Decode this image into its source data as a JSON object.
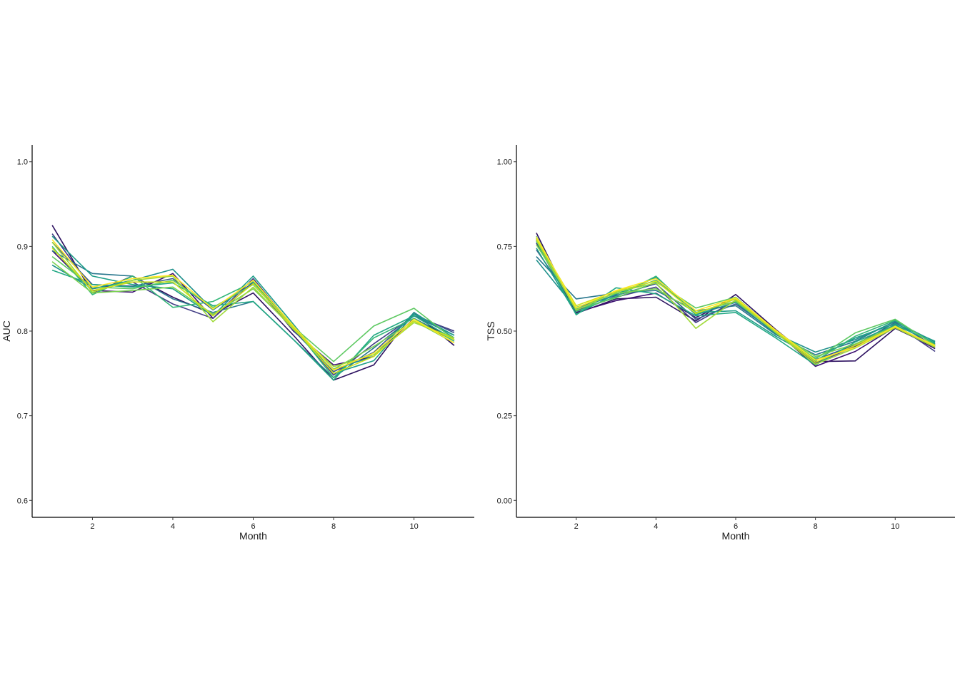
{
  "chart_data": [
    {
      "type": "line",
      "xlabel": "Month",
      "ylabel": "AUC",
      "xlim": [
        0.5,
        11.5
      ],
      "ylim": [
        0.58,
        1.02
      ],
      "xticks": [
        2,
        4,
        6,
        8,
        10
      ],
      "xtick_labels": [
        "2",
        "4",
        "6",
        "8",
        "10"
      ],
      "yticks": [
        0.6,
        0.7,
        0.8,
        0.9,
        1.0
      ],
      "ytick_labels": [
        "0.6",
        "0.7",
        "0.8",
        "0.9",
        "1.0"
      ],
      "grid": false,
      "legend": "none",
      "x": [
        1,
        2,
        3,
        4,
        5,
        6,
        7,
        8,
        9,
        10,
        11
      ],
      "series": [
        {
          "color": "#2d1160",
          "values": [
            0.925,
            0.845,
            0.865,
            0.84,
            0.82,
            0.845,
            0.795,
            0.742,
            0.76,
            0.822,
            0.783
          ]
        },
        {
          "color": "#3b0f70",
          "values": [
            0.895,
            0.848,
            0.846,
            0.868,
            0.815,
            0.858,
            0.8,
            0.76,
            0.77,
            0.815,
            0.79
          ]
        },
        {
          "color": "#433e85",
          "values": [
            0.915,
            0.85,
            0.858,
            0.832,
            0.815,
            0.862,
            0.805,
            0.748,
            0.785,
            0.818,
            0.8
          ]
        },
        {
          "color": "#38598c",
          "values": [
            0.905,
            0.855,
            0.853,
            0.862,
            0.825,
            0.857,
            0.801,
            0.752,
            0.775,
            0.82,
            0.798
          ]
        },
        {
          "color": "#2a788e",
          "values": [
            0.895,
            0.868,
            0.865,
            0.838,
            0.822,
            0.835,
            0.79,
            0.745,
            0.78,
            0.818,
            0.795
          ]
        },
        {
          "color": "#21918c",
          "values": [
            0.878,
            0.85,
            0.86,
            0.873,
            0.825,
            0.86,
            0.805,
            0.755,
            0.77,
            0.822,
            0.792
          ]
        },
        {
          "color": "#1f9e89",
          "values": [
            0.912,
            0.865,
            0.855,
            0.85,
            0.818,
            0.865,
            0.808,
            0.75,
            0.765,
            0.82,
            0.795
          ]
        },
        {
          "color": "#22a884",
          "values": [
            0.872,
            0.855,
            0.852,
            0.857,
            0.83,
            0.835,
            0.79,
            0.742,
            0.795,
            0.818,
            0.79
          ]
        },
        {
          "color": "#35b779",
          "values": [
            0.9,
            0.843,
            0.865,
            0.828,
            0.835,
            0.858,
            0.805,
            0.745,
            0.792,
            0.815,
            0.788
          ]
        },
        {
          "color": "#5ec962",
          "values": [
            0.888,
            0.852,
            0.85,
            0.86,
            0.828,
            0.855,
            0.805,
            0.764,
            0.806,
            0.827,
            0.79
          ]
        },
        {
          "color": "#7ad151",
          "values": [
            0.882,
            0.845,
            0.848,
            0.852,
            0.82,
            0.85,
            0.803,
            0.755,
            0.782,
            0.812,
            0.786
          ]
        },
        {
          "color": "#a0da39",
          "values": [
            0.905,
            0.846,
            0.86,
            0.865,
            0.811,
            0.852,
            0.802,
            0.758,
            0.772,
            0.81,
            0.792
          ]
        },
        {
          "color": "#d0e11c",
          "values": [
            0.898,
            0.848,
            0.858,
            0.858,
            0.818,
            0.856,
            0.804,
            0.75,
            0.77,
            0.812,
            0.79
          ]
        },
        {
          "color": "#fde725",
          "values": [
            0.908,
            0.852,
            0.862,
            0.866,
            0.826,
            0.86,
            0.806,
            0.754,
            0.774,
            0.814,
            0.786
          ]
        }
      ]
    },
    {
      "type": "line",
      "xlabel": "Month",
      "ylabel": "TSS",
      "xlim": [
        0.5,
        11.5
      ],
      "ylim": [
        -0.05,
        1.05
      ],
      "xticks": [
        2,
        4,
        6,
        8,
        10
      ],
      "xtick_labels": [
        "2",
        "4",
        "6",
        "8",
        "10"
      ],
      "yticks": [
        0.0,
        0.25,
        0.5,
        0.75,
        1.0
      ],
      "ytick_labels": [
        "0.00",
        "0.25",
        "0.50",
        "0.75",
        "1.00"
      ],
      "grid": false,
      "legend": "none",
      "x": [
        1,
        2,
        3,
        4,
        5,
        6,
        7,
        8,
        9,
        10,
        11
      ],
      "series": [
        {
          "color": "#2d1160",
          "values": [
            0.79,
            0.552,
            0.595,
            0.6,
            0.53,
            0.608,
            0.505,
            0.41,
            0.412,
            0.508,
            0.452
          ]
        },
        {
          "color": "#3b0f70",
          "values": [
            0.76,
            0.555,
            0.59,
            0.612,
            0.54,
            0.598,
            0.5,
            0.396,
            0.44,
            0.512,
            0.448
          ]
        },
        {
          "color": "#433e85",
          "values": [
            0.77,
            0.56,
            0.6,
            0.63,
            0.525,
            0.59,
            0.498,
            0.405,
            0.455,
            0.52,
            0.44
          ]
        },
        {
          "color": "#38598c",
          "values": [
            0.74,
            0.57,
            0.605,
            0.64,
            0.535,
            0.58,
            0.495,
            0.415,
            0.46,
            0.525,
            0.455
          ]
        },
        {
          "color": "#2a788e",
          "values": [
            0.72,
            0.595,
            0.612,
            0.62,
            0.56,
            0.575,
            0.49,
            0.43,
            0.47,
            0.53,
            0.462
          ]
        },
        {
          "color": "#21918c",
          "values": [
            0.71,
            0.565,
            0.608,
            0.658,
            0.548,
            0.585,
            0.492,
            0.438,
            0.475,
            0.528,
            0.468
          ]
        },
        {
          "color": "#1f9e89",
          "values": [
            0.745,
            0.55,
            0.61,
            0.65,
            0.555,
            0.56,
            0.485,
            0.42,
            0.48,
            0.522,
            0.47
          ]
        },
        {
          "color": "#22a884",
          "values": [
            0.765,
            0.548,
            0.628,
            0.61,
            0.545,
            0.555,
            0.48,
            0.4,
            0.468,
            0.518,
            0.465
          ]
        },
        {
          "color": "#35b779",
          "values": [
            0.775,
            0.558,
            0.602,
            0.662,
            0.55,
            0.595,
            0.5,
            0.412,
            0.485,
            0.532,
            0.46
          ]
        },
        {
          "color": "#5ec962",
          "values": [
            0.78,
            0.565,
            0.598,
            0.645,
            0.568,
            0.6,
            0.502,
            0.418,
            0.495,
            0.535,
            0.458
          ]
        },
        {
          "color": "#7ad151",
          "values": [
            0.755,
            0.57,
            0.612,
            0.625,
            0.555,
            0.588,
            0.498,
            0.425,
            0.462,
            0.515,
            0.455
          ]
        },
        {
          "color": "#a0da39",
          "values": [
            0.768,
            0.562,
            0.615,
            0.642,
            0.508,
            0.592,
            0.496,
            0.402,
            0.45,
            0.51,
            0.452
          ]
        },
        {
          "color": "#d0e11c",
          "values": [
            0.772,
            0.575,
            0.618,
            0.648,
            0.552,
            0.595,
            0.5,
            0.408,
            0.458,
            0.512,
            0.458
          ]
        },
        {
          "color": "#fde725",
          "values": [
            0.778,
            0.568,
            0.62,
            0.655,
            0.56,
            0.598,
            0.503,
            0.414,
            0.452,
            0.514,
            0.456
          ]
        }
      ]
    }
  ]
}
